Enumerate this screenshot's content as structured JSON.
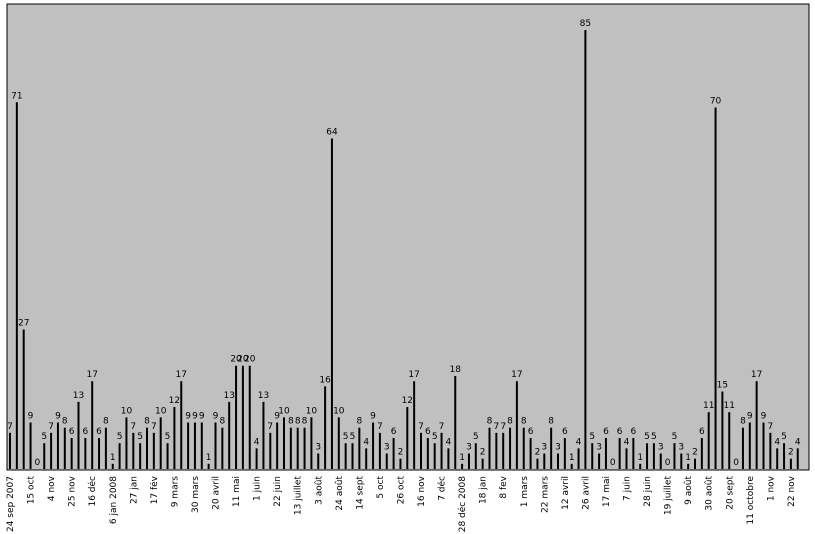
{
  "chart_data": {
    "type": "bar",
    "color": "#000000",
    "background": "#c0c0c0",
    "categories": [
      "24 sep 2007",
      null,
      null,
      "15 oct",
      null,
      null,
      "4 nov",
      null,
      null,
      "25 nov",
      null,
      null,
      "16 déc",
      null,
      null,
      "6 jan 2008",
      null,
      null,
      "27 jan",
      null,
      null,
      "17 fév",
      null,
      null,
      "9 mars",
      null,
      null,
      "30 mars",
      null,
      null,
      "20 avril",
      null,
      null,
      "11 mai",
      null,
      null,
      "1 juin",
      null,
      null,
      "22 juin",
      null,
      null,
      "13 juillet",
      null,
      null,
      "3 août",
      null,
      null,
      "24 août",
      null,
      null,
      "14 sept",
      null,
      null,
      "5 oct",
      null,
      null,
      "26 oct",
      null,
      null,
      "16 nov",
      null,
      null,
      "7 déc",
      null,
      null,
      "28 déc 2008",
      null,
      null,
      "18 jan",
      null,
      null,
      "8 fev",
      null,
      null,
      "1 mars",
      null,
      null,
      "22 mars",
      null,
      null,
      "12 avril",
      null,
      null,
      "26 avril",
      null,
      null,
      "17 mai",
      null,
      null,
      "7 juin",
      null,
      null,
      "28 juin",
      null,
      null,
      "19 juillet",
      null,
      null,
      "9 août",
      null,
      null,
      "30 août",
      null,
      null,
      "20 sept",
      null,
      null,
      "11 octobre",
      null,
      null,
      "1 nov",
      null,
      null,
      "22 nov",
      null
    ],
    "values": [
      7,
      71,
      27,
      9,
      0,
      5,
      7,
      9,
      8,
      6,
      13,
      6,
      17,
      6,
      8,
      1,
      5,
      10,
      7,
      5,
      8,
      7,
      10,
      5,
      12,
      17,
      9,
      9,
      9,
      1,
      9,
      8,
      13,
      20,
      20,
      20,
      4,
      13,
      7,
      9,
      10,
      8,
      8,
      8,
      10,
      3,
      16,
      64,
      10,
      5,
      5,
      8,
      4,
      9,
      7,
      3,
      6,
      2,
      12,
      17,
      7,
      6,
      5,
      7,
      4,
      18,
      1,
      3,
      5,
      2,
      8,
      7,
      7,
      8,
      17,
      8,
      6,
      2,
      3,
      8,
      3,
      6,
      1,
      4,
      85,
      5,
      3,
      6,
      0,
      6,
      4,
      6,
      1,
      5,
      5,
      3,
      0,
      5,
      3,
      1,
      2,
      6,
      11,
      70,
      15,
      11,
      0,
      8,
      9,
      17,
      9,
      7,
      4,
      5,
      2,
      4
    ]
  }
}
